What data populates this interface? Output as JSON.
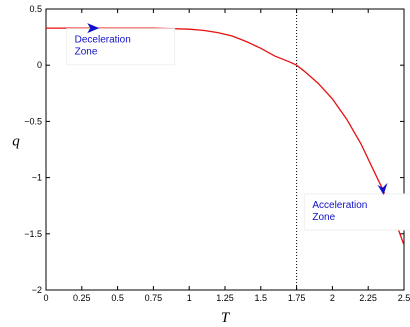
{
  "chart_data": {
    "type": "line",
    "xlabel": "T",
    "ylabel": "q",
    "xlim": [
      0,
      2.5
    ],
    "ylim": [
      -2,
      0.5
    ],
    "x_ticks": [
      "0",
      "0.25",
      "0.5",
      "0.75",
      "1",
      "1.25",
      "1.5",
      "1.75",
      "2",
      "2.25",
      "2.5"
    ],
    "y_ticks": [
      "0.5",
      "0",
      "−0.5",
      "−1",
      "−1.5",
      "−2"
    ],
    "grid": false,
    "series": [
      {
        "color": "#e81010",
        "x": [
          0,
          0.25,
          0.5,
          0.75,
          1.0,
          1.1,
          1.2,
          1.3,
          1.4,
          1.5,
          1.6,
          1.7,
          1.75,
          1.8,
          1.9,
          2.0,
          2.1,
          2.2,
          2.3,
          2.35,
          2.4,
          2.5
        ],
        "y": [
          0.33,
          0.33,
          0.33,
          0.33,
          0.32,
          0.31,
          0.29,
          0.26,
          0.21,
          0.15,
          0.08,
          0.03,
          0.0,
          -0.05,
          -0.16,
          -0.3,
          -0.48,
          -0.7,
          -0.97,
          -1.1,
          -1.25,
          -1.6
        ]
      }
    ],
    "reference_lines": [
      {
        "orientation": "vertical",
        "x": 1.75,
        "style": "dotted",
        "color": "#000000"
      }
    ],
    "arrows": [
      {
        "x": 0.33,
        "y": 0.33,
        "direction": "right",
        "color": "#1010c8"
      },
      {
        "x": 2.35,
        "y": -1.1,
        "direction": "down",
        "color": "#1010c8"
      }
    ],
    "annotations": [
      {
        "text": "Deceleration\nZone",
        "lines": [
          "Deceleration",
          "Zone"
        ],
        "x": 0.2,
        "y": 0.2
      },
      {
        "text": "Acceleration\nZone",
        "lines": [
          "Acceleration",
          "Zone"
        ],
        "x": 1.86,
        "y": -1.27
      }
    ]
  }
}
